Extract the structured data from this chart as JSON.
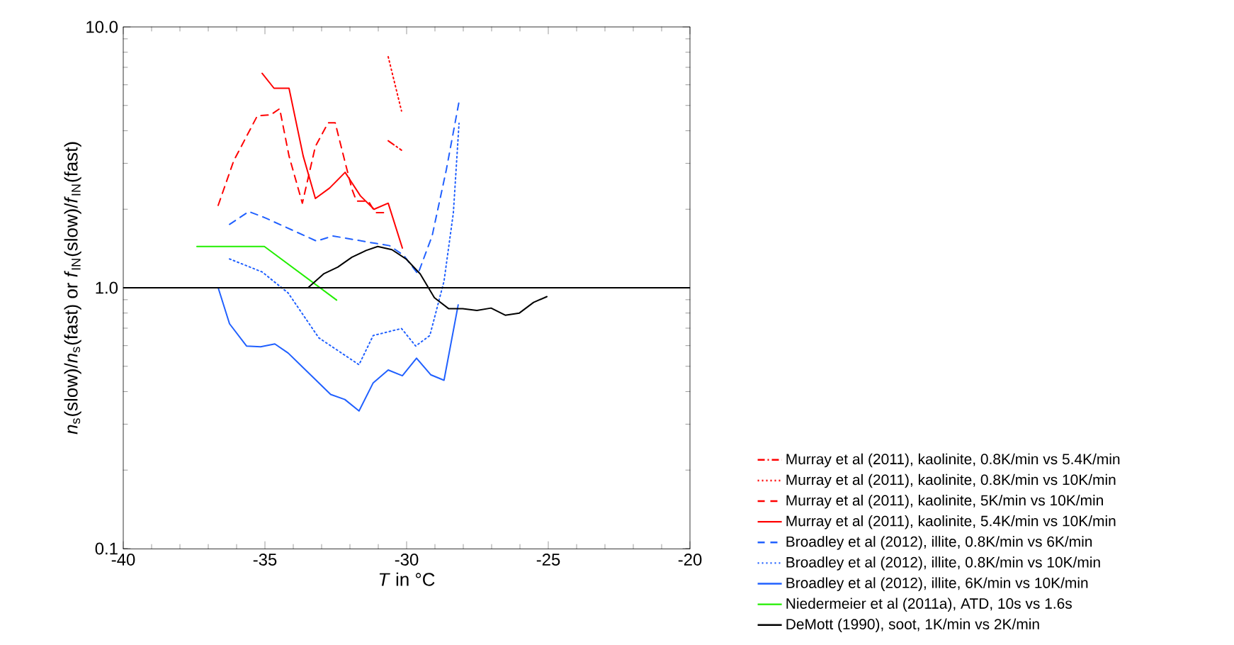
{
  "chart_data": {
    "type": "line",
    "xlabel": "*T* in °C",
    "ylabel": "*n*$_{s}$(slow)/*n*$_{s}$(fast) or *f*$_{IN}$(slow)/*f*$_{IN}$(fast)",
    "xlim": [
      -40,
      -20
    ],
    "xticks": [
      -40,
      -35,
      -30,
      -25,
      -20
    ],
    "ylim": [
      0.1,
      10
    ],
    "yticks": [
      {
        "value": 0.1,
        "label": "0.1"
      },
      {
        "value": 1,
        "label": "1.0"
      },
      {
        "value": 10,
        "label": "10.0"
      }
    ],
    "log": "y",
    "legend": "right",
    "grid": false,
    "ref_lines": [
      {
        "axis": "y",
        "value": 1,
        "color": "#000000"
      }
    ],
    "series": [
      {
        "name": "Murray et al (2011), kaolinite, 0.8K/min vs 5.4K/min",
        "color": "#ff0000",
        "line_style": "dashdot",
        "x": [
          -30.65,
          -30.18
        ],
        "values": [
          3.66,
          3.37
        ]
      },
      {
        "name": "Murray et al (2011), kaolinite, 0.8K/min vs 10K/min",
        "color": "#ff0000",
        "line_style": "dotted",
        "x": [
          -30.65,
          -30.18
        ],
        "values": [
          7.69,
          4.76
        ]
      },
      {
        "name": "Murray et al (2011), kaolinite, 5K/min vs 10K/min",
        "color": "#ff0000",
        "line_style": "dashed",
        "x": [
          -36.65,
          -36.1,
          -35.27,
          -34.8,
          -34.48,
          -34.15,
          -33.68,
          -33.22,
          -32.77,
          -32.52,
          -32.27,
          -31.93,
          -31.77,
          -31.35,
          -31.1,
          -30.63
        ],
        "values": [
          2.07,
          3.07,
          4.56,
          4.6,
          4.86,
          3.2,
          2.11,
          3.48,
          4.29,
          4.29,
          3.34,
          2.39,
          2.15,
          2.15,
          1.94,
          1.94
        ]
      },
      {
        "name": "Murray et al (2011), kaolinite, 5.4K/min vs 10K/min",
        "color": "#ff0000",
        "line_style": "solid",
        "x": [
          -35.1,
          -34.68,
          -34.15,
          -33.65,
          -33.22,
          -32.72,
          -32.17,
          -31.63,
          -31.15,
          -30.65,
          -30.15
        ],
        "values": [
          6.64,
          5.82,
          5.82,
          3.2,
          2.2,
          2.41,
          2.77,
          2.25,
          2.0,
          2.11,
          1.42
        ]
      },
      {
        "name": "Broadley et al (2012), illite, 0.8K/min vs 6K/min",
        "color": "#2060ff",
        "line_style": "dashed",
        "x": [
          -36.25,
          -35.57,
          -35.02,
          -33.18,
          -32.6,
          -31.1,
          -30.6,
          -30.1,
          -29.6,
          -29.1,
          -28.6,
          -28.15
        ],
        "values": [
          1.75,
          1.96,
          1.86,
          1.51,
          1.58,
          1.48,
          1.45,
          1.33,
          1.13,
          1.58,
          2.83,
          5.17
        ]
      },
      {
        "name": "Broadley et al (2012), illite, 0.8K/min vs 10K/min",
        "color": "#2060ff",
        "line_style": "dotted",
        "x": [
          -36.25,
          -35.1,
          -34.18,
          -33.1,
          -31.68,
          -31.18,
          -30.18,
          -29.68,
          -29.18,
          -28.68,
          -28.35,
          -28.15
        ],
        "values": [
          1.29,
          1.15,
          0.955,
          0.643,
          0.507,
          0.656,
          0.698,
          0.598,
          0.656,
          1.06,
          1.94,
          4.27
        ]
      },
      {
        "name": "Broadley et al (2012), illite, 6K/min vs 10K/min",
        "color": "#2060ff",
        "line_style": "solid",
        "x": [
          -36.65,
          -36.25,
          -35.65,
          -35.15,
          -34.65,
          -34.18,
          -32.68,
          -32.18,
          -31.68,
          -31.18,
          -30.65,
          -30.15,
          -29.65,
          -29.15,
          -28.68,
          -28.18
        ],
        "values": [
          1.0,
          0.728,
          0.598,
          0.594,
          0.609,
          0.562,
          0.39,
          0.373,
          0.337,
          0.432,
          0.484,
          0.46,
          0.537,
          0.464,
          0.442,
          0.86
        ]
      },
      {
        "name": "Niedermeier et al (2011a), ATD, 10s vs 1.6s",
        "color": "#22ee00",
        "line_style": "solid",
        "x": [
          -37.4,
          -35.02,
          -32.47
        ],
        "values": [
          1.44,
          1.44,
          0.897
        ]
      },
      {
        "name": "DeMott (1990), soot, 1K/min vs 2K/min",
        "color": "#000000",
        "line_style": "solid",
        "x": [
          -33.48,
          -32.93,
          -32.43,
          -31.93,
          -31.43,
          -31.02,
          -30.52,
          -30.02,
          -29.52,
          -29.02,
          -28.52,
          -28.02,
          -27.52,
          -27.02,
          -26.52,
          -26.02,
          -25.52,
          -25.05
        ],
        "values": [
          1.0,
          1.13,
          1.2,
          1.31,
          1.39,
          1.44,
          1.4,
          1.29,
          1.13,
          0.916,
          0.832,
          0.832,
          0.819,
          0.836,
          0.785,
          0.8,
          0.879,
          0.925
        ]
      }
    ]
  }
}
